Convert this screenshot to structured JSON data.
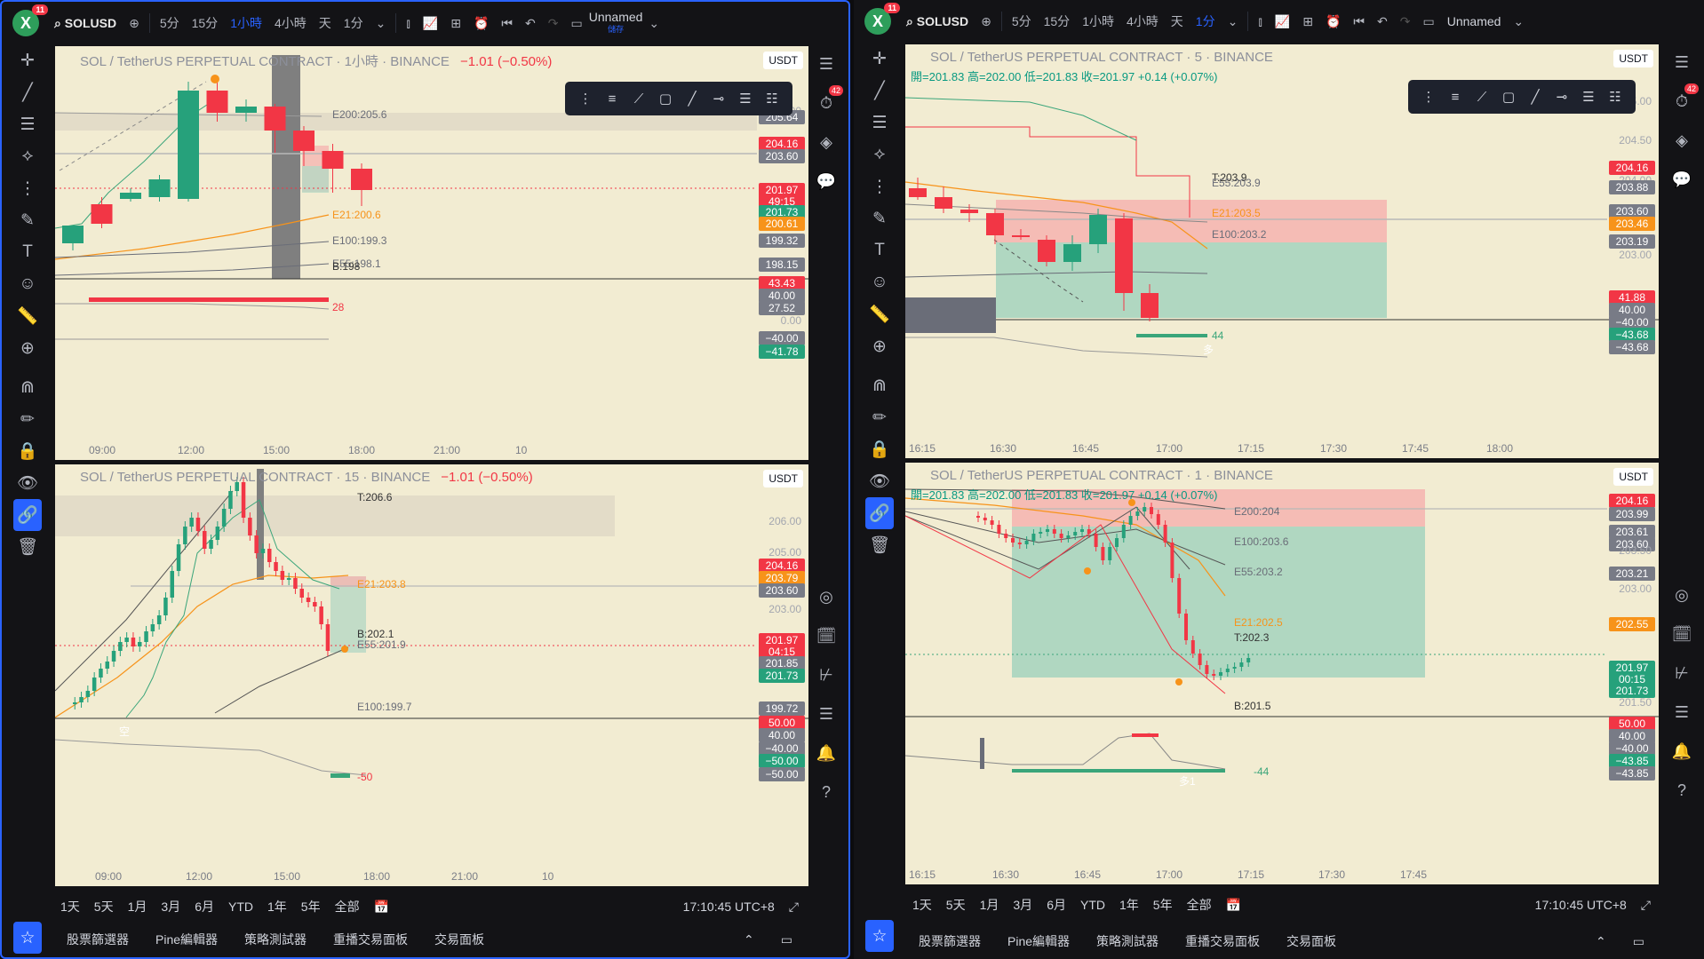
{
  "app": {
    "logo": "X",
    "notif": "11",
    "symbol": "SOLUSD",
    "intervals": [
      "5分",
      "15分",
      "1小時",
      "4小時",
      "天",
      "1分"
    ],
    "layout_name": "Unnamed",
    "layout_saved": "儲存"
  },
  "left": {
    "active_interval_idx": 2,
    "top": {
      "title": "SOL / TetherUS PERPETUAL CONTRACT · 1小時 · BINANCE",
      "change": "−1.01 (−0.50%)",
      "currency": "USDT",
      "ema": [
        "E200:205.6",
        "E21:200.6",
        "E100:199.3",
        "E55:198.1",
        "B:198"
      ],
      "prices": [
        "206.00",
        "205.64",
        "204.16",
        "203.60",
        "201.97",
        "49:15",
        "201.73",
        "200.61",
        "199.32",
        "198.15"
      ],
      "ind_vals": [
        "43.43",
        "40.00",
        "27.52",
        "0.00",
        "−40.00",
        "−41.78"
      ],
      "ind_label": "28",
      "xlabels": [
        "09:00",
        "12:00",
        "15:00",
        "18:00",
        "21:00",
        "10"
      ]
    },
    "bot": {
      "title": "SOL / TetherUS PERPETUAL CONTRACT · 15 · BINANCE",
      "change": "−1.01 (−0.50%)",
      "currency": "USDT",
      "ema": [
        "T:206.6",
        "E21:203.8",
        "B:202.1",
        "E55:201.9",
        "E100:199.7"
      ],
      "prices": [
        "206.00",
        "205.00",
        "204.16",
        "203.79",
        "203.60",
        "203.00",
        "201.97",
        "04:15",
        "201.85",
        "201.73",
        "199.72"
      ],
      "ind_vals": [
        "50.00",
        "40.00",
        "−40.00",
        "−50.00",
        "−50.00"
      ],
      "ind_label": "-50",
      "marker": "空",
      "xlabels": [
        "09:00",
        "12:00",
        "15:00",
        "18:00",
        "21:00",
        "10"
      ]
    },
    "ranges": [
      "1天",
      "5天",
      "1月",
      "3月",
      "6月",
      "YTD",
      "1年",
      "5年",
      "全部"
    ],
    "clock": "17:10:45 UTC+8",
    "menu": [
      "股票篩選器",
      "Pine編輯器",
      "策略測試器",
      "重播交易面板",
      "交易面板"
    ],
    "rtool_badge": "42"
  },
  "right": {
    "active_interval_idx": 5,
    "top": {
      "title": "SOL / TetherUS PERPETUAL CONTRACT · 5 · BINANCE",
      "ohlc": "開=201.83 高=202.00 低=201.83 收=201.97 +0.14 (+0.07%)",
      "currency": "USDT",
      "ema": [
        "T:203.9",
        "E55:203.9",
        "E21:203.5",
        "E100:203.2"
      ],
      "prices": [
        "205.00",
        "204.50",
        "204.16",
        "204.00",
        "203.88",
        "203.60",
        "203.46",
        "203.19",
        "203.00"
      ],
      "ind_vals": [
        "41.88",
        "40.00",
        "−40.00",
        "−43.68",
        "−43.68"
      ],
      "ind_label": "44",
      "marker": "多",
      "xlabels": [
        "16:15",
        "16:30",
        "16:45",
        "17:00",
        "17:15",
        "17:30",
        "17:45",
        "18:00"
      ]
    },
    "bot": {
      "title": "SOL / TetherUS PERPETUAL CONTRACT · 1 · BINANCE",
      "ohlc": "開=201.83 高=202.00 低=201.83 收=201.97 +0.14 (+0.07%)",
      "currency": "USDT",
      "ema": [
        "E200:204",
        "E100:203.6",
        "E55:203.2",
        "E21:202.5",
        "T:202.3",
        "B:201.5"
      ],
      "prices": [
        "204.16",
        "203.99",
        "203.61",
        "203.60",
        "203.50",
        "203.21",
        "203.00",
        "202.55",
        "201.97",
        "00:15",
        "201.73",
        "201.50"
      ],
      "ind_vals": [
        "50.00",
        "40.00",
        "−40.00",
        "−43.85",
        "−43.85"
      ],
      "ind_label": "-44",
      "marker": "多1",
      "xlabels": [
        "16:15",
        "16:30",
        "16:45",
        "17:00",
        "17:15",
        "17:30",
        "17:45"
      ]
    },
    "ranges": [
      "1天",
      "5天",
      "1月",
      "3月",
      "6月",
      "YTD",
      "1年",
      "5年",
      "全部"
    ],
    "clock": "17:10:45 UTC+8",
    "menu": [
      "股票篩選器",
      "Pine編輯器",
      "策略測試器",
      "重播交易面板",
      "交易面板"
    ],
    "rtool_badge": "42"
  },
  "colors": {
    "bull": "#26a17b",
    "bear": "#f23645",
    "bg": "#f2ecd2",
    "accent": "#2962ff"
  },
  "icons": {
    "left_toolbar": [
      "crosshair-icon",
      "trendline-icon",
      "fib-icon",
      "pattern-icon",
      "projection-icon",
      "brush-icon",
      "text-icon",
      "emoji-icon",
      "ruler-icon",
      "zoom-icon",
      "magnet-icon",
      "lock-draw-icon",
      "lock-icon",
      "eye-icon",
      "link-icon",
      "trash-icon",
      "star-icon"
    ],
    "right_toolbar": [
      "watchlist-icon",
      "alert-clock-icon",
      "layers-icon",
      "chat-icon",
      "target-icon",
      "calendar-icon",
      "tree-icon",
      "signal-icon",
      "bell-icon",
      "help-icon"
    ]
  }
}
